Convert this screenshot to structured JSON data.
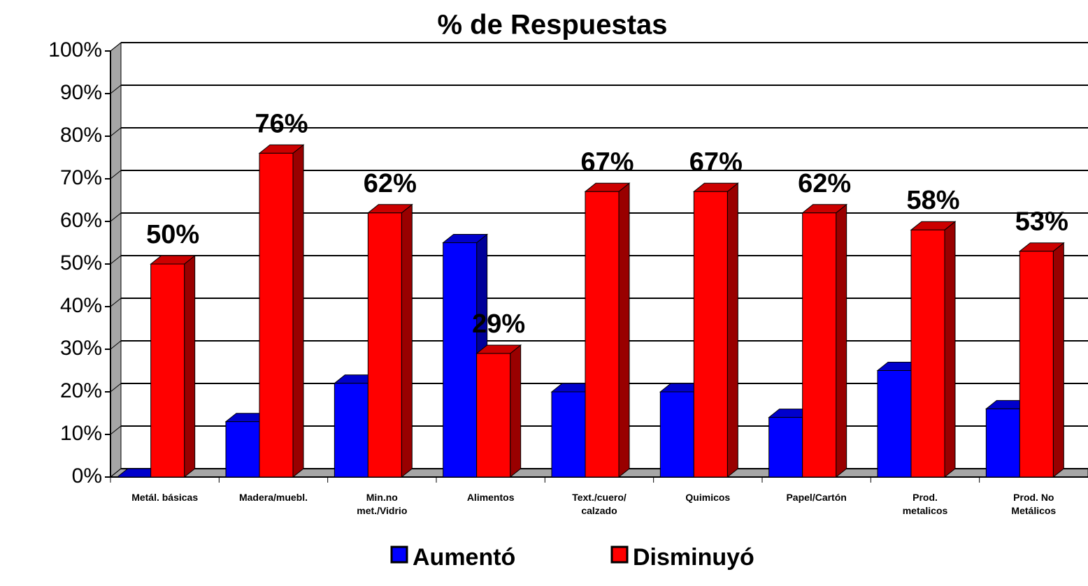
{
  "chart_data": {
    "type": "bar3d",
    "title": "% de Respuestas",
    "categories": [
      "Metál. básicas",
      "Madera/muebl.",
      "Min.no\nmet./Vidrio",
      "Alimentos",
      "Text./cuero/\ncalzado",
      "Quimicos",
      "Papel/Cartón",
      "Prod.\nmetalicos",
      "Prod. No\nMetálicos"
    ],
    "series": [
      {
        "name": "Aumentó",
        "color": "#0000ff",
        "values": [
          0,
          13,
          22,
          55,
          20,
          20,
          14,
          25,
          16
        ]
      },
      {
        "name": "Disminuyó",
        "color": "#ff0000",
        "values": [
          50,
          76,
          62,
          29,
          67,
          67,
          62,
          58,
          53
        ],
        "value_labels": [
          "50%",
          "76%",
          "62%",
          "29%",
          "67%",
          "67%",
          "62%",
          "58%",
          "53%"
        ]
      }
    ],
    "ylim": [
      0,
      100
    ],
    "yticks": [
      {
        "value": 0,
        "label": "0%"
      },
      {
        "value": 10,
        "label": "10%"
      },
      {
        "value": 20,
        "label": "20%"
      },
      {
        "value": 30,
        "label": "30%"
      },
      {
        "value": 40,
        "label": "40%"
      },
      {
        "value": 50,
        "label": "50%"
      },
      {
        "value": 60,
        "label": "60%"
      },
      {
        "value": 70,
        "label": "70%"
      },
      {
        "value": 80,
        "label": "80%"
      },
      {
        "value": 90,
        "label": "90%"
      },
      {
        "value": 100,
        "label": "100%"
      }
    ],
    "grid": true,
    "legend": "bottom"
  }
}
